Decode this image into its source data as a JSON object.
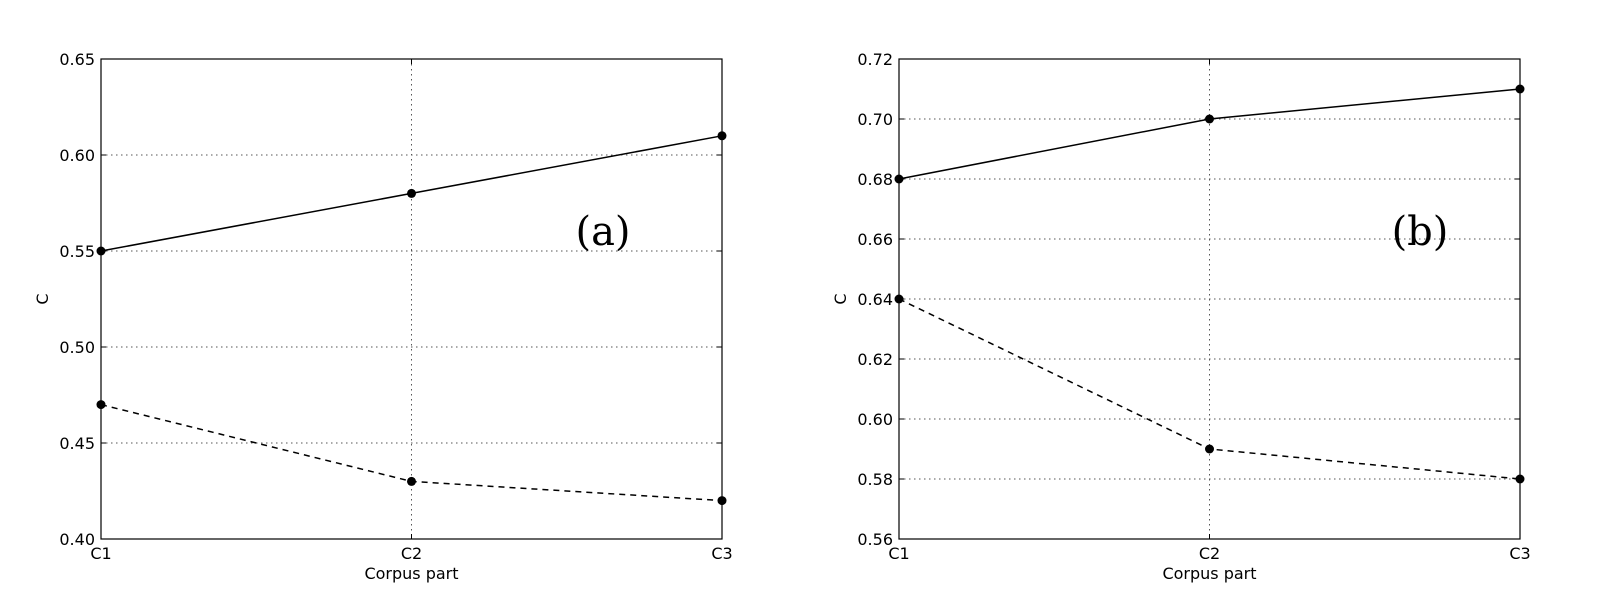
{
  "chart_data": [
    {
      "type": "line",
      "annotation": "(a)",
      "xlabel": "Corpus part",
      "ylabel": "C",
      "categories": [
        "C1",
        "C2",
        "C3"
      ],
      "ylim": [
        0.4,
        0.65
      ],
      "yticks": [
        "0.40",
        "0.45",
        "0.50",
        "0.55",
        "0.60",
        "0.65"
      ],
      "grid": true,
      "series": [
        {
          "style": "solid",
          "values": [
            0.55,
            0.58,
            0.61
          ]
        },
        {
          "style": "dashed",
          "values": [
            0.47,
            0.43,
            0.42
          ]
        }
      ]
    },
    {
      "type": "line",
      "annotation": "(b)",
      "xlabel": "Corpus part",
      "ylabel": "C",
      "categories": [
        "C1",
        "C2",
        "C3"
      ],
      "ylim": [
        0.56,
        0.72
      ],
      "yticks": [
        "0.56",
        "0.58",
        "0.60",
        "0.62",
        "0.64",
        "0.66",
        "0.68",
        "0.70",
        "0.72"
      ],
      "grid": true,
      "series": [
        {
          "style": "solid",
          "values": [
            0.68,
            0.7,
            0.71
          ]
        },
        {
          "style": "dashed",
          "values": [
            0.64,
            0.59,
            0.58
          ]
        }
      ]
    }
  ]
}
